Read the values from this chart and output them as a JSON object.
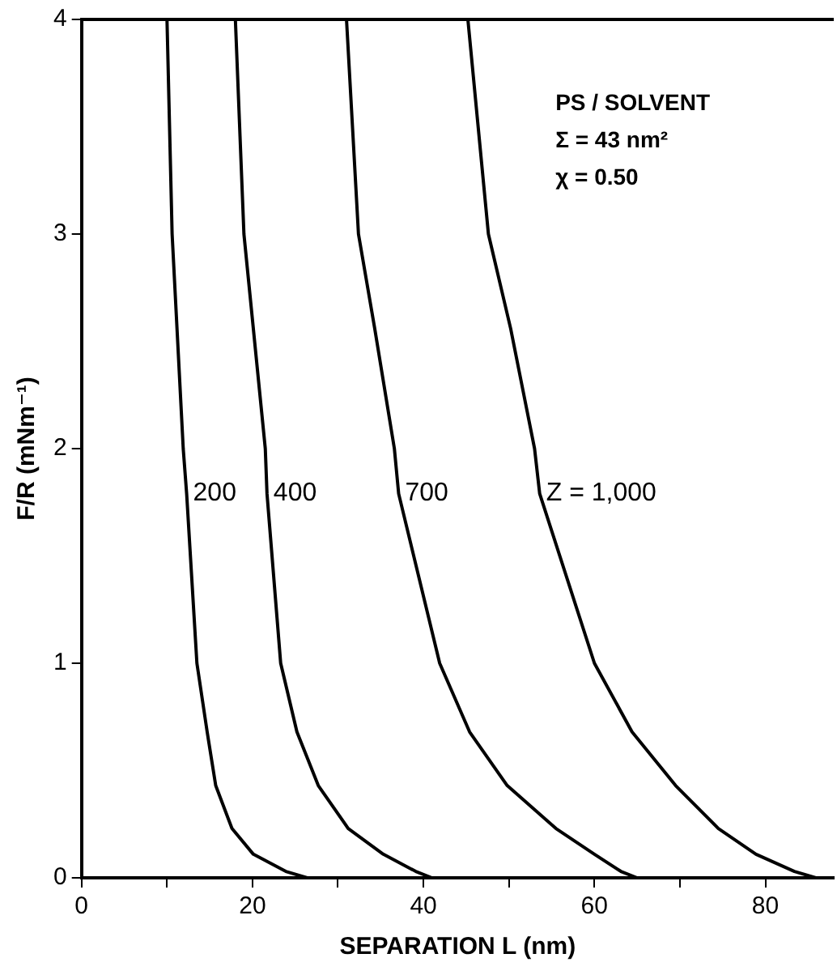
{
  "chart_data": {
    "type": "line",
    "xlabel": "SEPARATION L (nm)",
    "ylabel": "F/R (mNm⁻¹)",
    "xlim": [
      0,
      88
    ],
    "xticks": [
      0,
      {
        "value": 10,
        "label": null
      },
      20,
      {
        "value": 30,
        "label": null
      },
      40,
      {
        "value": 50,
        "label": null
      },
      60,
      {
        "value": 70,
        "label": null
      },
      80
    ],
    "ylim": [
      0,
      4
    ],
    "yticks": [
      0,
      1,
      2,
      3,
      4
    ],
    "grid": false,
    "legend": false,
    "marker": "none",
    "line_style": "solid",
    "annotations": [
      "PS / SOLVENT",
      "Σ = 43 nm²",
      "χ = 0.50"
    ],
    "series": [
      {
        "name": "200",
        "color": "#000000",
        "x": [
          10.0,
          10.6,
          11.9,
          12.3,
          13.5,
          14.7,
          15.7,
          17.6,
          20.1,
          23.9,
          26.4
        ],
        "values": [
          4,
          3,
          2,
          1.79,
          1.0,
          0.68,
          0.43,
          0.23,
          0.11,
          0.03,
          0
        ]
      },
      {
        "name": "400",
        "color": "#000000",
        "x": [
          18.0,
          19.0,
          21.5,
          21.7,
          23.3,
          25.2,
          27.7,
          31.2,
          35.3,
          39.1,
          41
        ],
        "values": [
          4,
          3,
          2,
          1.79,
          1.0,
          0.68,
          0.43,
          0.23,
          0.11,
          0.03,
          0
        ]
      },
      {
        "name": "700",
        "color": "#000000",
        "x": [
          31.0,
          32.4,
          34.3,
          36.6,
          37.1,
          41.9,
          45.4,
          49.8,
          55.5,
          60.0,
          63.1,
          65
        ],
        "values": [
          4,
          3,
          2.56,
          2,
          1.79,
          1.0,
          0.68,
          0.43,
          0.23,
          0.11,
          0.03,
          0
        ]
      },
      {
        "name": "Z = 1,000",
        "color": "#000000",
        "x": [
          45.2,
          47.6,
          50.2,
          53.0,
          53.6,
          60.0,
          64.4,
          69.5,
          74.5,
          78.9,
          83.4,
          85.9
        ],
        "values": [
          4,
          3,
          2.56,
          2,
          1.79,
          1.0,
          0.68,
          0.43,
          0.23,
          0.11,
          0.03,
          0
        ]
      }
    ]
  }
}
